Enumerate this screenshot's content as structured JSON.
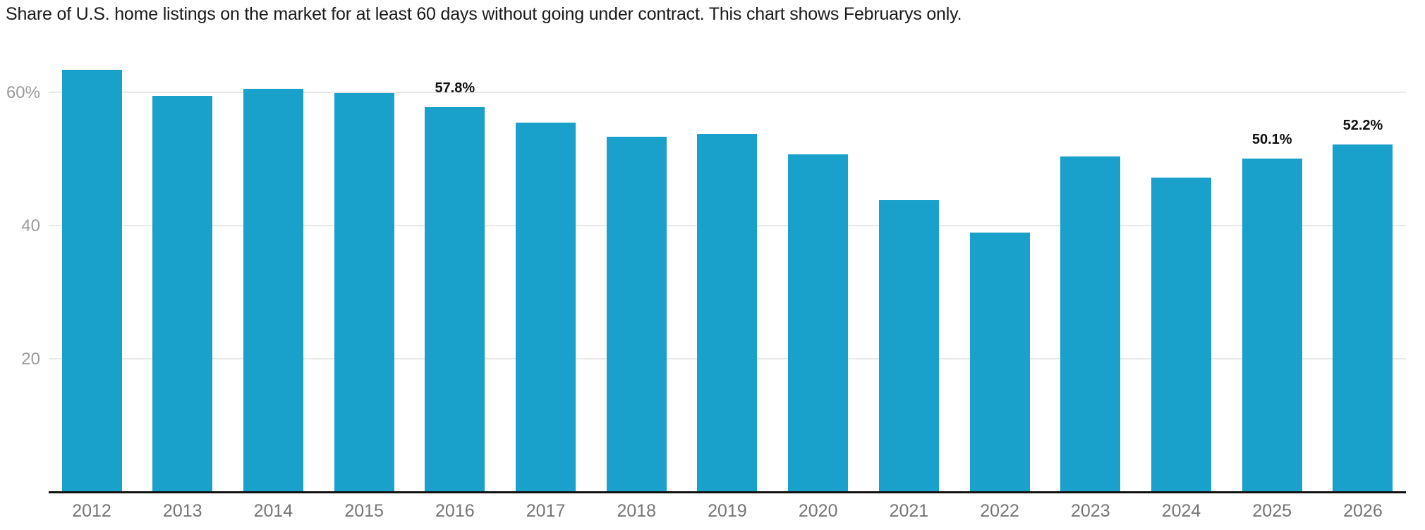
{
  "title": "Share of U.S. home listings on the market for at least 60 days without going under contract. This chart shows Februarys only.",
  "colors": {
    "bar": "#19A0CB",
    "gridline": "#e8e8e8",
    "axis_line": "#111111",
    "y_tick_label": "#9a9a9a",
    "x_tick_label": "#757575",
    "title_text": "#1a1a1a",
    "data_label": "#111111",
    "background": "#ffffff"
  },
  "chart_data": {
    "type": "bar",
    "title": "Share of U.S. home listings on the market for at least 60 days without going under contract. This chart shows Februarys only.",
    "categories": [
      "2012",
      "2013",
      "2014",
      "2015",
      "2016",
      "2017",
      "2018",
      "2019",
      "2020",
      "2021",
      "2022",
      "2023",
      "2024",
      "2025",
      "2026"
    ],
    "values": [
      63.4,
      59.5,
      60.5,
      59.9,
      57.8,
      55.5,
      53.3,
      53.8,
      50.7,
      43.8,
      38.9,
      50.4,
      47.2,
      50.1,
      52.2
    ],
    "bar_labels": [
      "",
      "",
      "",
      "",
      "57.8%",
      "",
      "",
      "",
      "",
      "",
      "",
      "",
      "",
      "50.1%",
      "52.2%"
    ],
    "xlabel": "",
    "ylabel": "",
    "unit": "%",
    "ylim": [
      0,
      66
    ],
    "y_ticks": [
      {
        "value": 20,
        "label": "20"
      },
      {
        "value": 40,
        "label": "40"
      },
      {
        "value": 60,
        "label": "60%"
      }
    ],
    "grid": true,
    "legend": "none",
    "bar_color": "#19A0CB"
  }
}
